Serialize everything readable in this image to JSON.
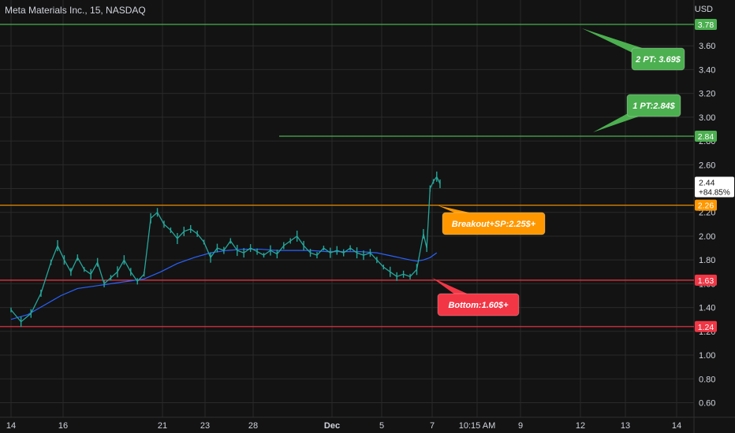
{
  "header": {
    "title": "Meta Materials Inc., 15, NASDAQ",
    "currency": "USD"
  },
  "colors": {
    "background": "#131313",
    "grid": "#2a2a2a",
    "text": "#d1d4dc",
    "candle": "#26a69a",
    "ma": "#2962ff",
    "green": "#4caf50",
    "orange": "#ff9800",
    "red": "#f23645",
    "last_price_bg": "#ffffff"
  },
  "chart_data": {
    "type": "candlestick",
    "y_axis": {
      "min": 0.5,
      "max": 3.9,
      "position": "right",
      "ticks": [
        "0.60",
        "0.80",
        "1.00",
        "1.20",
        "1.40",
        "1.60",
        "1.80",
        "2.00",
        "2.20",
        "2.40",
        "2.60",
        "2.80",
        "3.00",
        "3.20",
        "3.40",
        "3.60"
      ]
    },
    "x_axis": {
      "ticks": [
        "14",
        "16",
        "21",
        "23",
        "28",
        "Dec",
        "5",
        "7",
        "10:15 AM",
        "9",
        "12",
        "13",
        "14"
      ],
      "bold_ticks": [
        "Dec"
      ]
    },
    "grid": true,
    "price_lines": [
      {
        "price": 3.78,
        "label": "3.78",
        "color": "green"
      },
      {
        "price": 2.84,
        "label": "2.84",
        "color": "green"
      },
      {
        "price": 2.26,
        "label": "2.26",
        "color": "orange"
      },
      {
        "price": 1.63,
        "label": "1.63",
        "color": "red"
      },
      {
        "price": 1.24,
        "label": "1.24",
        "color": "red"
      }
    ],
    "last_price": {
      "price": 2.44,
      "label": "2.44",
      "change": "+84.85%"
    },
    "annotations": [
      {
        "text": "2 PT: 3.69$",
        "color": "green"
      },
      {
        "text": "1 PT:2.84$",
        "color": "green"
      },
      {
        "text": "Breakout+SP:2.25$+",
        "color": "orange"
      },
      {
        "text": "Bottom:1.60$+",
        "color": "red"
      }
    ],
    "series": [
      {
        "kind": "price",
        "points": [
          [
            0,
            1.38
          ],
          [
            3,
            1.28
          ],
          [
            6,
            1.35
          ],
          [
            9,
            1.52
          ],
          [
            12,
            1.78
          ],
          [
            14,
            1.92
          ],
          [
            16,
            1.8
          ],
          [
            18,
            1.7
          ],
          [
            20,
            1.82
          ],
          [
            22,
            1.72
          ],
          [
            24,
            1.68
          ],
          [
            26,
            1.78
          ],
          [
            28,
            1.6
          ],
          [
            30,
            1.65
          ],
          [
            32,
            1.7
          ],
          [
            34,
            1.8
          ],
          [
            36,
            1.7
          ],
          [
            38,
            1.62
          ],
          [
            40,
            1.68
          ],
          [
            42,
            2.15
          ],
          [
            44,
            2.2
          ],
          [
            46,
            2.1
          ],
          [
            48,
            2.05
          ],
          [
            50,
            1.98
          ],
          [
            52,
            2.04
          ],
          [
            54,
            2.06
          ],
          [
            56,
            2.02
          ],
          [
            58,
            1.95
          ],
          [
            60,
            1.82
          ],
          [
            62,
            1.9
          ],
          [
            64,
            1.88
          ],
          [
            66,
            1.96
          ],
          [
            68,
            1.88
          ],
          [
            70,
            1.86
          ],
          [
            72,
            1.9
          ],
          [
            74,
            1.87
          ],
          [
            76,
            1.84
          ],
          [
            78,
            1.88
          ],
          [
            80,
            1.85
          ],
          [
            82,
            1.92
          ],
          [
            84,
            1.96
          ],
          [
            86,
            2.0
          ],
          [
            88,
            1.92
          ],
          [
            90,
            1.86
          ],
          [
            92,
            1.84
          ],
          [
            94,
            1.9
          ],
          [
            96,
            1.86
          ],
          [
            98,
            1.88
          ],
          [
            100,
            1.86
          ],
          [
            102,
            1.9
          ],
          [
            104,
            1.86
          ],
          [
            106,
            1.84
          ],
          [
            108,
            1.86
          ],
          [
            110,
            1.8
          ],
          [
            112,
            1.74
          ],
          [
            114,
            1.7
          ],
          [
            116,
            1.66
          ],
          [
            118,
            1.68
          ],
          [
            120,
            1.66
          ],
          [
            122,
            1.72
          ],
          [
            124,
            2.02
          ],
          [
            125,
            1.9
          ],
          [
            126,
            2.4
          ],
          [
            127,
            2.46
          ],
          [
            128,
            2.5
          ],
          [
            129,
            2.44
          ]
        ]
      },
      {
        "kind": "moving_average",
        "points": [
          [
            0,
            1.3
          ],
          [
            5,
            1.34
          ],
          [
            10,
            1.42
          ],
          [
            15,
            1.5
          ],
          [
            20,
            1.56
          ],
          [
            25,
            1.58
          ],
          [
            30,
            1.6
          ],
          [
            35,
            1.62
          ],
          [
            40,
            1.64
          ],
          [
            45,
            1.7
          ],
          [
            50,
            1.77
          ],
          [
            55,
            1.82
          ],
          [
            60,
            1.86
          ],
          [
            65,
            1.88
          ],
          [
            70,
            1.89
          ],
          [
            75,
            1.89
          ],
          [
            80,
            1.88
          ],
          [
            85,
            1.88
          ],
          [
            90,
            1.88
          ],
          [
            95,
            1.87
          ],
          [
            100,
            1.87
          ],
          [
            105,
            1.87
          ],
          [
            110,
            1.86
          ],
          [
            115,
            1.83
          ],
          [
            120,
            1.8
          ],
          [
            122,
            1.79
          ],
          [
            124,
            1.8
          ],
          [
            126,
            1.82
          ],
          [
            128,
            1.86
          ]
        ]
      }
    ]
  }
}
